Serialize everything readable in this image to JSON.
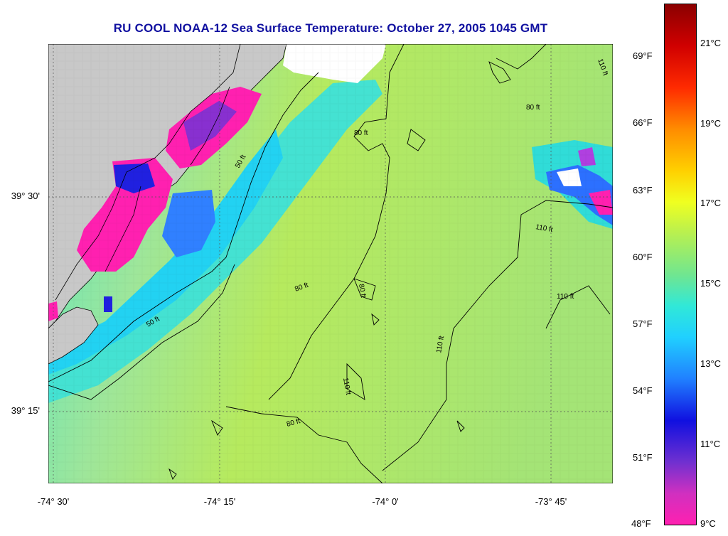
{
  "title": "RU COOL  NOAA-12  Sea Surface Temperature:  October 27, 2005 1045 GMT",
  "lon_labels": [
    "-74° 30'",
    "-74° 15'",
    "-74° 0'",
    "-73° 45'"
  ],
  "lat_labels": [
    "39° 30'",
    "39° 15'"
  ],
  "fahrenheit_labels": [
    "69°F",
    "66°F",
    "63°F",
    "60°F",
    "57°F",
    "54°F",
    "51°F",
    "48°F"
  ],
  "celsius_labels": [
    "21°C",
    "19°C",
    "17°C",
    "15°C",
    "13°C",
    "11°C",
    "9°C"
  ],
  "contour_labels": {
    "c50a": "50 ft",
    "c50b": "50 ft",
    "c80a": "80 ft",
    "c80b": "80 ft",
    "c80c": "80 ft",
    "c80d": "80 ft",
    "c80e": "80 ft",
    "c110a": "110 ft",
    "c110b": "110 ft",
    "c110c": "110 ft",
    "c110d": "110 ft",
    "c110e": "110 ft"
  },
  "colors": {
    "title": "#1010a0",
    "land": "#c8c8c8",
    "cloud": "#ffffff",
    "water_main": "#b8ea50",
    "water_cool": "#40e0d0",
    "water_cold": "#2060ff",
    "coldest": "#ff20b0"
  }
}
